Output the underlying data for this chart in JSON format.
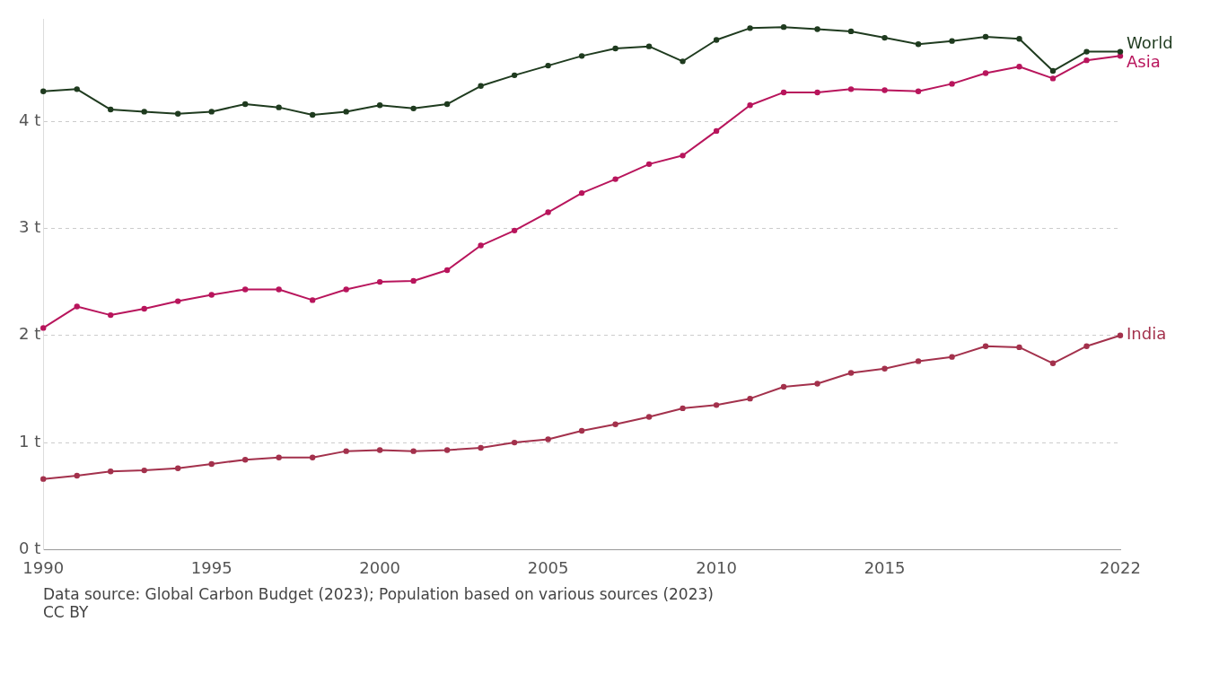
{
  "chart_data": {
    "type": "line",
    "x": [
      1990,
      1991,
      1992,
      1993,
      1994,
      1995,
      1996,
      1997,
      1998,
      1999,
      2000,
      2001,
      2002,
      2003,
      2004,
      2005,
      2006,
      2007,
      2008,
      2009,
      2010,
      2011,
      2012,
      2013,
      2014,
      2015,
      2016,
      2017,
      2018,
      2019,
      2020,
      2021,
      2022
    ],
    "series": [
      {
        "name": "World",
        "color": "#1f3b1f",
        "values": [
          4.28,
          4.3,
          4.11,
          4.09,
          4.07,
          4.09,
          4.16,
          4.13,
          4.06,
          4.09,
          4.15,
          4.12,
          4.16,
          4.33,
          4.43,
          4.52,
          4.61,
          4.68,
          4.7,
          4.56,
          4.76,
          4.87,
          4.88,
          4.86,
          4.84,
          4.78,
          4.72,
          4.75,
          4.79,
          4.77,
          4.47,
          4.65,
          4.65
        ]
      },
      {
        "name": "Asia",
        "color": "#b8155c",
        "values": [
          2.07,
          2.27,
          2.19,
          2.25,
          2.32,
          2.38,
          2.43,
          2.43,
          2.33,
          2.43,
          2.5,
          2.51,
          2.61,
          2.84,
          2.98,
          3.15,
          3.33,
          3.46,
          3.6,
          3.68,
          3.91,
          4.15,
          4.27,
          4.27,
          4.3,
          4.29,
          4.28,
          4.35,
          4.45,
          4.51,
          4.4,
          4.57,
          4.61
        ]
      },
      {
        "name": "India",
        "color": "#a3314c",
        "values": [
          0.66,
          0.69,
          0.73,
          0.74,
          0.76,
          0.8,
          0.84,
          0.86,
          0.86,
          0.92,
          0.93,
          0.92,
          0.93,
          0.95,
          1.0,
          1.03,
          1.11,
          1.17,
          1.24,
          1.32,
          1.35,
          1.41,
          1.52,
          1.55,
          1.65,
          1.69,
          1.76,
          1.8,
          1.9,
          1.89,
          1.74,
          1.9,
          2.0
        ]
      }
    ],
    "xlim": [
      1990,
      2022
    ],
    "xticks": [
      1990,
      1995,
      2000,
      2005,
      2010,
      2015,
      2022
    ],
    "ylim": [
      0,
      4.95
    ],
    "yticks": [
      {
        "value": 0,
        "label": "0 t"
      },
      {
        "value": 1,
        "label": "1 t"
      },
      {
        "value": 2,
        "label": "2 t"
      },
      {
        "value": 3,
        "label": "3 t"
      },
      {
        "value": 4,
        "label": "4 t"
      }
    ],
    "grid": "y",
    "marker": "circle",
    "line_style": "solid",
    "legend": false,
    "annotations": [
      "Data source: Global Carbon Budget (2023); Population based on various sources (2023)",
      "CC BY"
    ]
  }
}
